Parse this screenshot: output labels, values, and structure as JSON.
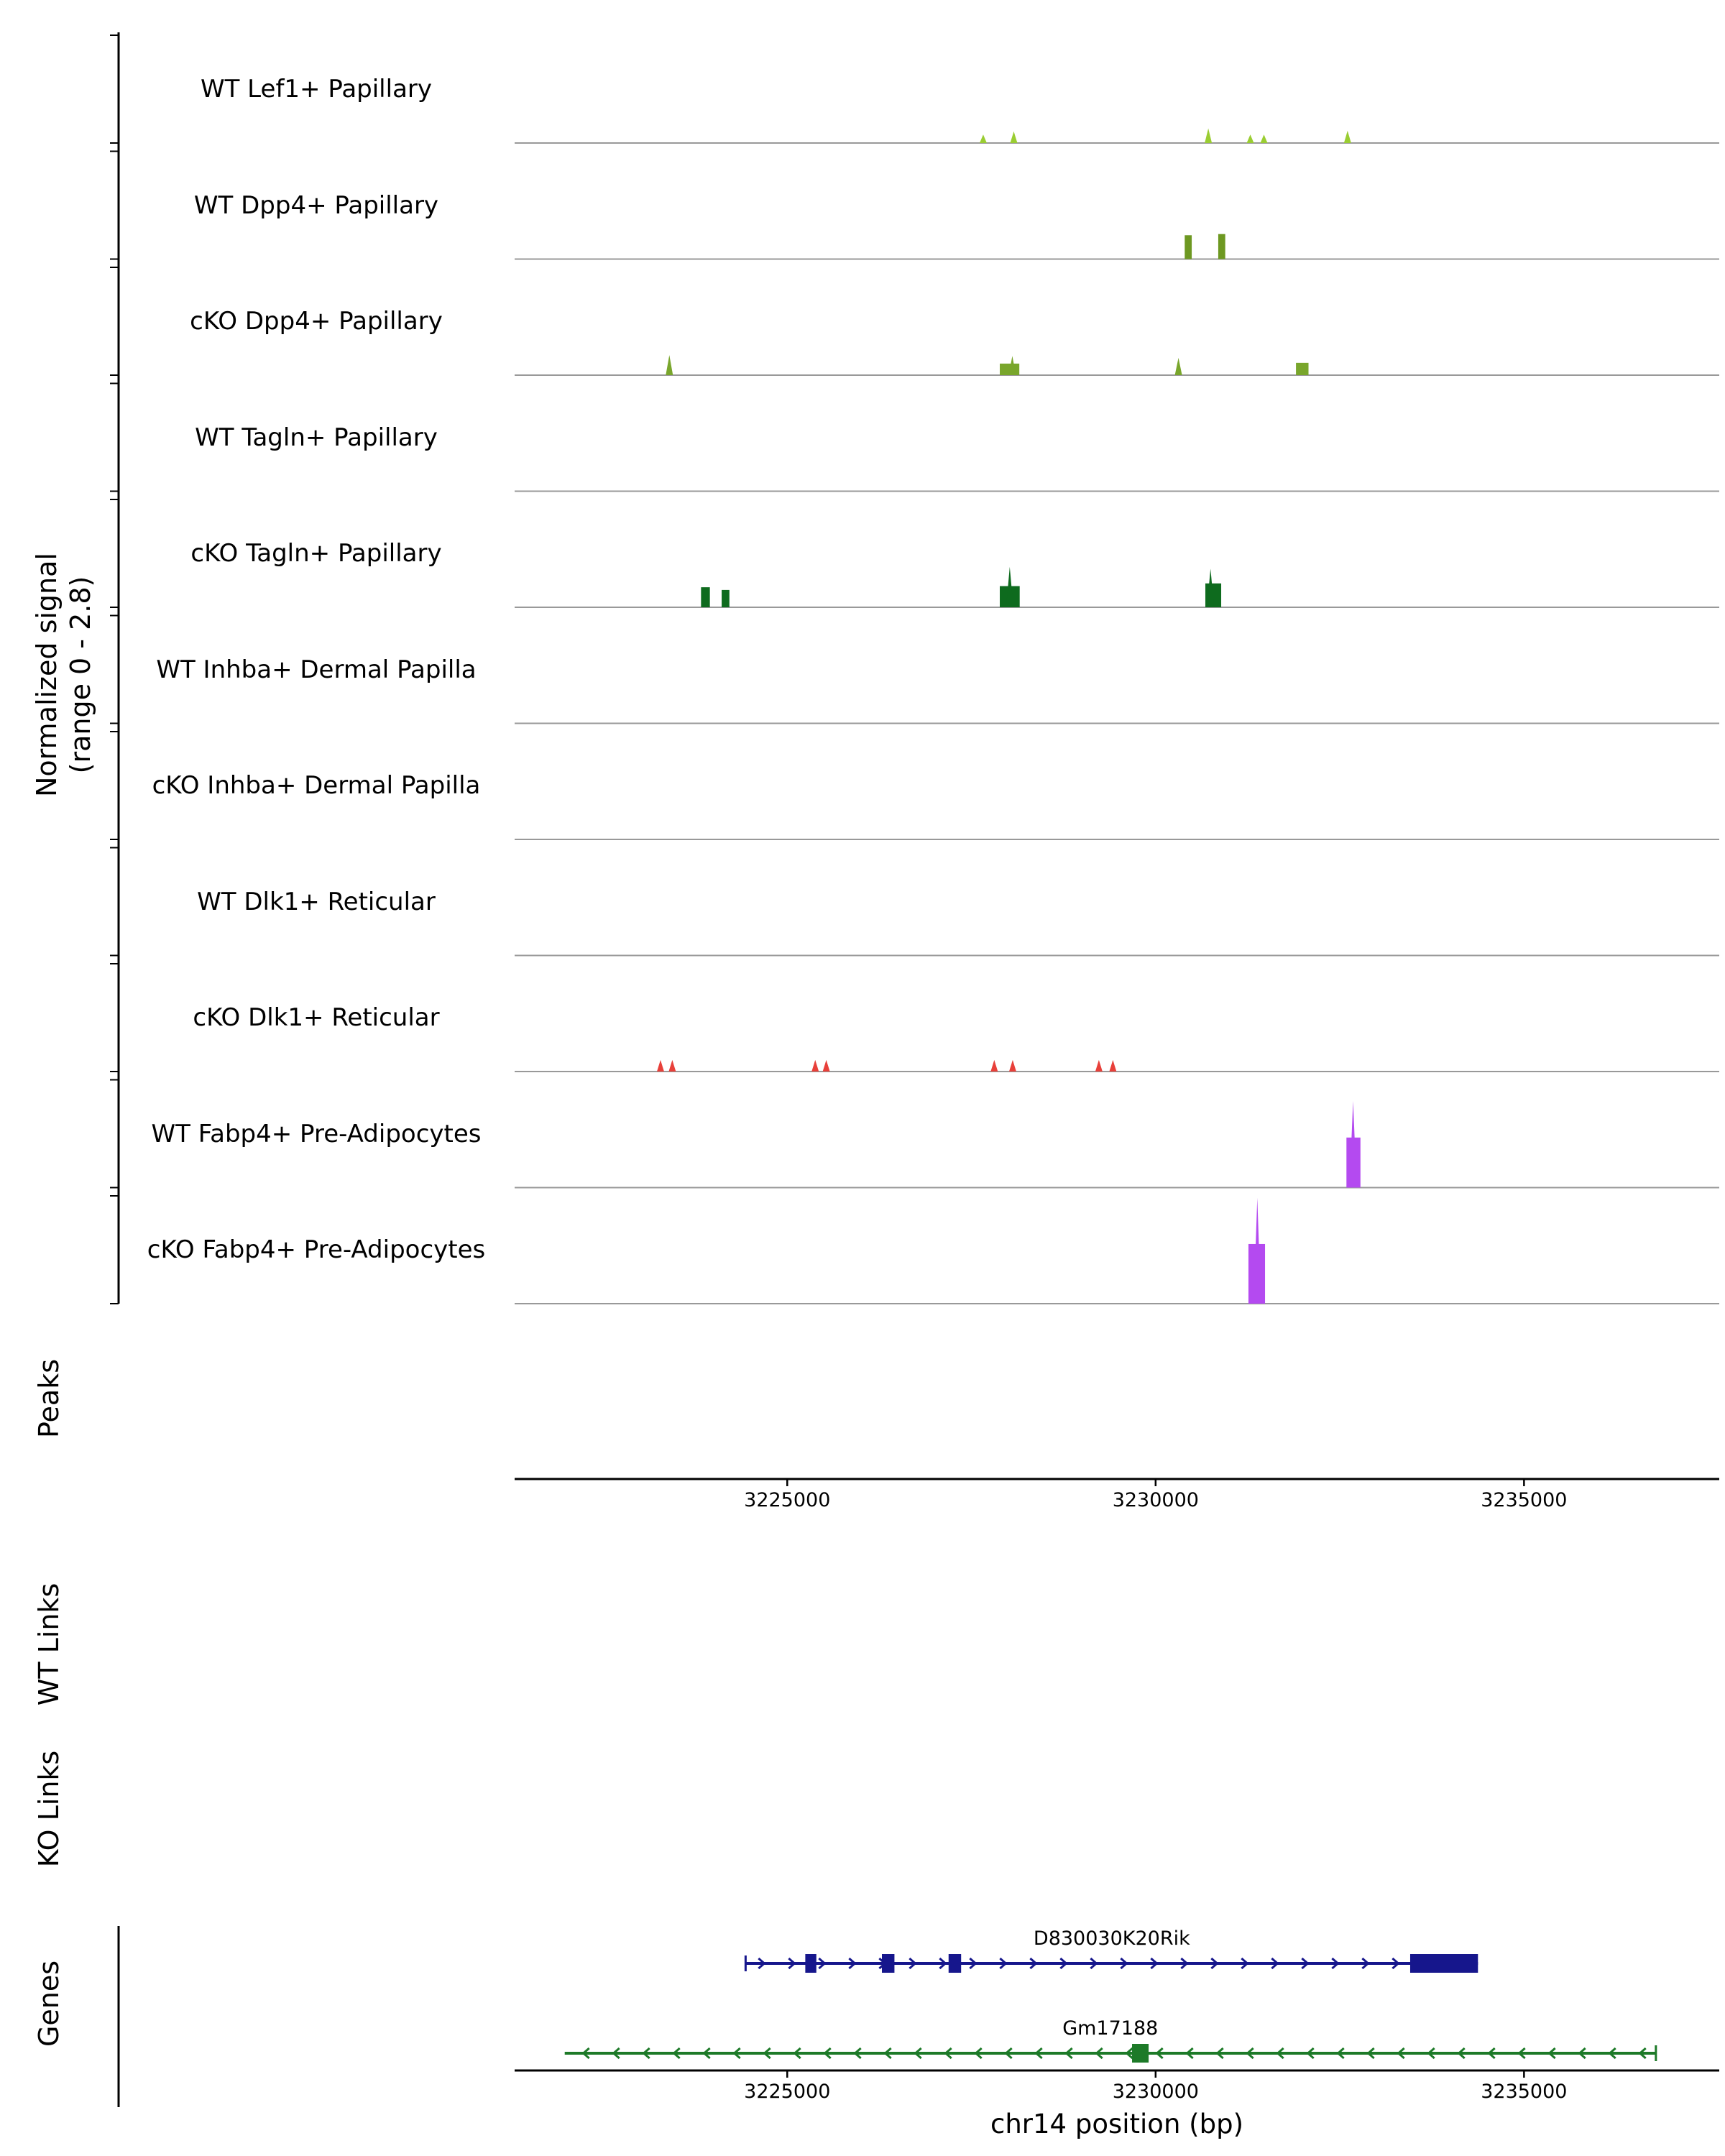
{
  "ylabel_line1": "Normalized signal",
  "ylabel_line2": "(range 0 - 2.8)",
  "xlabel": "chr14 position (bp)",
  "sections": {
    "peaks": "Peaks",
    "wt_links": "WT Links",
    "ko_links": "KO Links",
    "genes": "Genes"
  },
  "chart_data": {
    "type": "genome-coverage-tracks",
    "chrom": "chr14",
    "x_range_bp": [
      3221300,
      3237650
    ],
    "x_ticks": [
      3225000,
      3230000,
      3235000
    ],
    "y_signal_range": [
      0,
      2.8
    ],
    "tracks": [
      {
        "label": "WT Lef1+ Papillary",
        "color": "#9acd32",
        "blocks": [],
        "spikes": [
          [
            3227660,
            0.22
          ],
          [
            3228075,
            0.3
          ],
          [
            3230715,
            0.38
          ],
          [
            3231285,
            0.22
          ],
          [
            3231470,
            0.22
          ],
          [
            3232605,
            0.32
          ]
        ]
      },
      {
        "label": "WT Dpp4+ Papillary",
        "color": "#6d9821",
        "blocks": [
          [
            3230395,
            3230490,
            0.62
          ],
          [
            3230850,
            3230945,
            0.65
          ]
        ],
        "spikes": []
      },
      {
        "label": "cKO Dpp4+ Papillary",
        "color": "#79a62c",
        "blocks": [
          [
            3227885,
            3228150,
            0.3
          ],
          [
            3231905,
            3232075,
            0.32
          ]
        ],
        "spikes": [
          [
            3223400,
            0.52
          ],
          [
            3228055,
            0.5
          ],
          [
            3230310,
            0.45
          ]
        ]
      },
      {
        "label": "WT Tagln+ Papillary",
        "blocks": [],
        "spikes": []
      },
      {
        "label": "cKO Tagln+ Papillary",
        "color": "#0e6b1e",
        "blocks": [
          [
            3223830,
            3223950,
            0.52
          ],
          [
            3224110,
            3224215,
            0.45
          ],
          [
            3227885,
            3228155,
            0.55
          ],
          [
            3230675,
            3230890,
            0.62
          ]
        ],
        "spikes": [
          [
            3228020,
            1.05
          ],
          [
            3230745,
            1.0
          ]
        ]
      },
      {
        "label": "WT Inhba+ Dermal Papilla",
        "blocks": [],
        "spikes": []
      },
      {
        "label": "cKO Inhba+ Dermal Papilla",
        "blocks": [],
        "spikes": []
      },
      {
        "label": "WT Dlk1+ Reticular",
        "blocks": [],
        "spikes": []
      },
      {
        "label": "cKO Dlk1+ Reticular",
        "color": "#e8403a",
        "blocks": [],
        "spikes": [
          [
            3223280,
            0.3
          ],
          [
            3223440,
            0.3
          ],
          [
            3225380,
            0.3
          ],
          [
            3225530,
            0.3
          ],
          [
            3227810,
            0.3
          ],
          [
            3228060,
            0.3
          ],
          [
            3229230,
            0.3
          ],
          [
            3229420,
            0.3
          ]
        ]
      },
      {
        "label": "WT Fabp4+ Pre-Adipocytes",
        "color": "#b44af0",
        "blocks": [
          [
            3232590,
            3232780,
            1.3
          ]
        ],
        "spikes": [
          [
            3232680,
            2.25
          ]
        ]
      },
      {
        "label": "cKO Fabp4+ Pre-Adipocytes",
        "color": "#b44af0",
        "blocks": [
          [
            3231260,
            3231485,
            1.55
          ]
        ],
        "spikes": [
          [
            3231380,
            2.75
          ]
        ]
      }
    ],
    "genes": [
      {
        "name": "D830030K20Rik",
        "color": "#16168c",
        "strand": "+",
        "start": 3224435,
        "end": 3234375,
        "exons": [
          [
            3225245,
            3225395
          ],
          [
            3226285,
            3226455
          ],
          [
            3227190,
            3227360
          ],
          [
            3233455,
            3234375
          ]
        ]
      },
      {
        "name": "Gm17188",
        "color": "#1d7a28",
        "strand": "-",
        "start": 3221980,
        "end": 3236790,
        "exons": [
          [
            3229680,
            3229905
          ]
        ]
      }
    ]
  }
}
